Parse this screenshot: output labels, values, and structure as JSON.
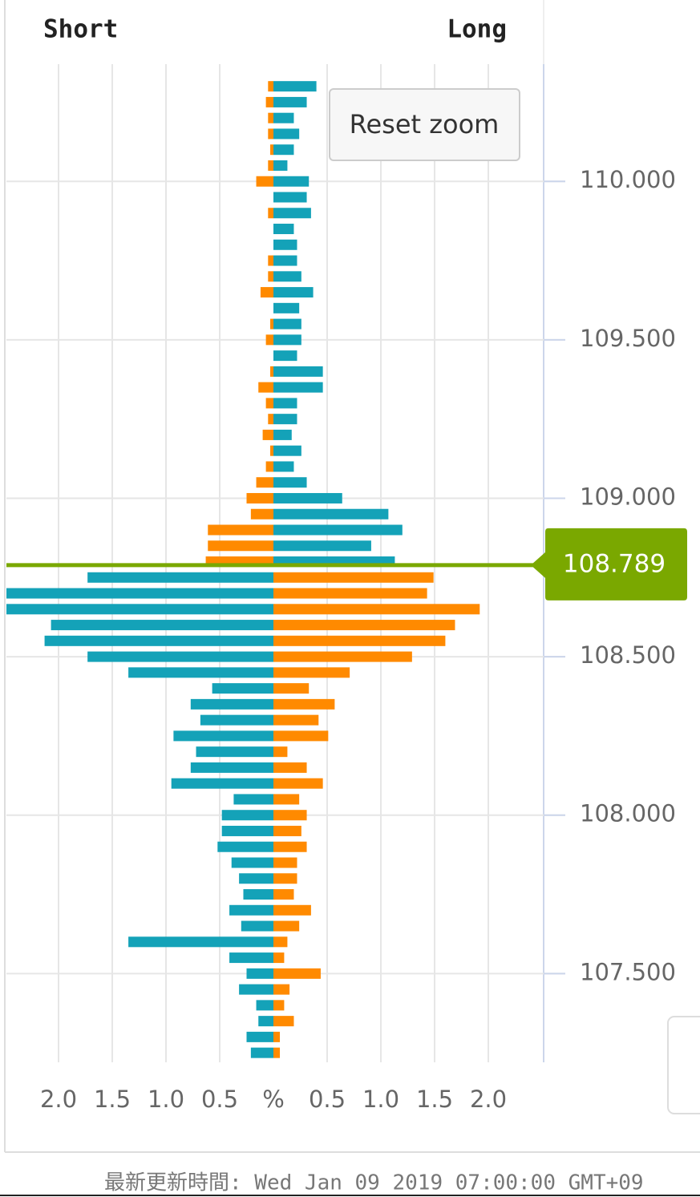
{
  "chart_data": {
    "type": "order-book",
    "series": [
      {
        "name": "Short",
        "color_above": "#ff8a00",
        "color_below": "#14a2b8",
        "values": [
          0.05,
          0.07,
          0.05,
          0.05,
          0.03,
          0.05,
          0.16,
          0,
          0.05,
          0,
          0,
          0.05,
          0.05,
          0.12,
          0,
          0.03,
          0.07,
          0,
          0.03,
          0.14,
          0.07,
          0.05,
          0.1,
          0.03,
          0.07,
          0.16,
          0.25,
          0.21,
          0.61,
          0.61,
          0.63,
          1.73,
          2.5,
          2.5,
          2.07,
          2.13,
          1.73,
          1.35,
          0.57,
          0.77,
          0.68,
          0.93,
          0.72,
          0.77,
          0.95,
          0.37,
          0.48,
          0.48,
          0.52,
          0.39,
          0.32,
          0.28,
          0.41,
          0.3,
          1.35,
          0.41,
          0.25,
          0.32,
          0.16,
          0.14,
          0.25,
          0.21
        ]
      },
      {
        "name": "Long",
        "color_above": "#14a2b8",
        "color_below": "#ff8a00",
        "values": [
          0.4,
          0.31,
          0.19,
          0.24,
          0.19,
          0.13,
          0.33,
          0.31,
          0.35,
          0.19,
          0.22,
          0.22,
          0.26,
          0.37,
          0.24,
          0.26,
          0.26,
          0.22,
          0.46,
          0.46,
          0.22,
          0.22,
          0.17,
          0.26,
          0.19,
          0.31,
          0.64,
          1.07,
          1.2,
          0.91,
          1.13,
          1.49,
          1.43,
          1.92,
          1.69,
          1.6,
          1.29,
          0.71,
          0.33,
          0.57,
          0.42,
          0.51,
          0.13,
          0.31,
          0.46,
          0.24,
          0.31,
          0.26,
          0.31,
          0.22,
          0.22,
          0.19,
          0.35,
          0.24,
          0.13,
          0.1,
          0.44,
          0.15,
          0.1,
          0.19,
          0.06,
          0.06
        ]
      }
    ],
    "y": [
      110.3,
      110.25,
      110.2,
      110.15,
      110.1,
      110.05,
      110.0,
      109.95,
      109.9,
      109.85,
      109.8,
      109.75,
      109.7,
      109.65,
      109.6,
      109.55,
      109.5,
      109.45,
      109.4,
      109.35,
      109.3,
      109.25,
      109.2,
      109.15,
      109.1,
      109.05,
      109.0,
      108.95,
      108.9,
      108.85,
      108.8,
      108.75,
      108.7,
      108.65,
      108.6,
      108.55,
      108.5,
      108.45,
      108.4,
      108.35,
      108.3,
      108.25,
      108.2,
      108.15,
      108.1,
      108.05,
      108.0,
      107.95,
      107.9,
      107.85,
      107.8,
      107.75,
      107.7,
      107.65,
      107.6,
      107.55,
      107.5,
      107.45,
      107.4,
      107.35,
      107.3,
      107.25
    ],
    "xlim": [
      -2.5,
      2.5
    ],
    "xticks": [
      {
        "value": -2,
        "label": "2.0"
      },
      {
        "value": -1.5,
        "label": "1.5"
      },
      {
        "value": -1,
        "label": "1.0"
      },
      {
        "value": -0.5,
        "label": "0.5"
      },
      {
        "value": 0,
        "label": "%"
      },
      {
        "value": 0.5,
        "label": "0.5"
      },
      {
        "value": 1,
        "label": "1.0"
      },
      {
        "value": 1.5,
        "label": "1.5"
      },
      {
        "value": 2,
        "label": "2.0"
      }
    ],
    "ylim": [
      107.22,
      110.37
    ],
    "yticks": [
      {
        "value": 110,
        "label": "110.000"
      },
      {
        "value": 109.5,
        "label": "109.500"
      },
      {
        "value": 109,
        "label": "109.000"
      },
      {
        "value": 108.5,
        "label": "108.500"
      },
      {
        "value": 108,
        "label": "108.000"
      },
      {
        "value": 107.5,
        "label": "107.500"
      }
    ],
    "grid": true,
    "current_price": 108.789,
    "current_price_color": "#7aa800"
  },
  "button": "Reset zoom",
  "footer": "最新更新時間: Wed Jan 09 2019 07:00:00 GMT+09"
}
